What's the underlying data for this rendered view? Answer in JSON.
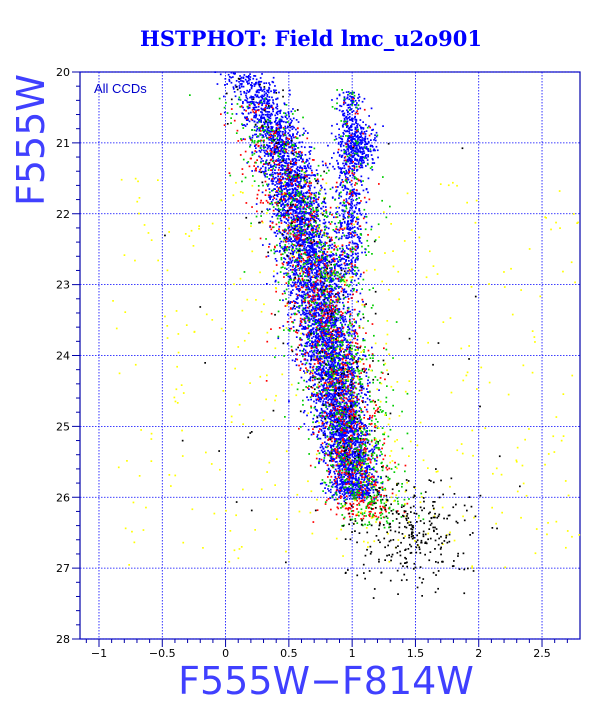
{
  "chart_data": {
    "type": "scatter",
    "title": "HSTPHOT: Field lmc_u2o901",
    "xlabel": "F555W−F814W",
    "ylabel": "F555W",
    "xlim": [
      -1.15,
      2.8
    ],
    "ylim": [
      28,
      20
    ],
    "x_ticks": [
      "−1",
      "−0.5",
      "0",
      "0.5",
      "1",
      "1.5",
      "2",
      "2.5"
    ],
    "x_tick_values": [
      -1,
      -0.5,
      0,
      0.5,
      1,
      1.5,
      2,
      2.5
    ],
    "y_ticks": [
      "20",
      "21",
      "22",
      "23",
      "24",
      "25",
      "26",
      "27",
      "28"
    ],
    "y_tick_values": [
      20,
      21,
      22,
      23,
      24,
      25,
      26,
      27,
      28
    ],
    "y_inverted": true,
    "grid": true,
    "annotation": "All CCDs",
    "series": [
      {
        "color": "#0000ff",
        "components": [
          {
            "kind": "sequence",
            "x0": 0.06,
            "y0": 20.0,
            "x1": 1.02,
            "y1": 26.0,
            "curve": 0.55,
            "spread": 0.1,
            "count": 5500
          },
          {
            "kind": "branch",
            "x0": 0.98,
            "y0": 20.3,
            "x1": 0.98,
            "y1": 22.9,
            "curve": 0.0,
            "spread": 0.05,
            "count": 600
          },
          {
            "kind": "clump",
            "x": 1.05,
            "y": 21.05,
            "sx": 0.07,
            "sy": 0.16,
            "count": 250
          }
        ]
      },
      {
        "color": "#ff0000",
        "components": [
          {
            "kind": "sequence",
            "x0": 0.04,
            "y0": 20.4,
            "x1": 1.1,
            "y1": 26.3,
            "curve": 0.55,
            "spread": 0.14,
            "count": 1100
          },
          {
            "kind": "branch",
            "x0": 0.98,
            "y0": 20.4,
            "x1": 1.0,
            "y1": 22.9,
            "curve": 0.0,
            "spread": 0.07,
            "count": 80
          }
        ]
      },
      {
        "color": "#00cc00",
        "components": [
          {
            "kind": "sequence",
            "x0": 0.04,
            "y0": 20.3,
            "x1": 1.15,
            "y1": 26.4,
            "curve": 0.55,
            "spread": 0.15,
            "count": 1100
          },
          {
            "kind": "branch",
            "x0": 0.98,
            "y0": 20.2,
            "x1": 1.02,
            "y1": 23.2,
            "curve": 0.0,
            "spread": 0.09,
            "count": 120
          }
        ]
      },
      {
        "color": "#ffff00",
        "components": [
          {
            "kind": "field",
            "x_range": [
              -0.9,
              2.8
            ],
            "y_range": [
              21.5,
              27.0
            ],
            "count": 300
          },
          {
            "kind": "sequence",
            "x0": 0.1,
            "y0": 21.5,
            "x1": 1.4,
            "y1": 26.8,
            "curve": 0.5,
            "spread": 0.25,
            "count": 150
          }
        ]
      },
      {
        "color": "#000000",
        "components": [
          {
            "kind": "sequence",
            "x0": 0.05,
            "y0": 20.1,
            "x1": 1.0,
            "y1": 25.5,
            "curve": 0.55,
            "spread": 0.14,
            "count": 200
          },
          {
            "kind": "clump",
            "x": 1.45,
            "y": 26.5,
            "sx": 0.25,
            "sy": 0.35,
            "count": 300
          },
          {
            "kind": "field",
            "x_range": [
              -0.5,
              2.5
            ],
            "y_range": [
              21.0,
              27.0
            ],
            "count": 40
          }
        ]
      }
    ]
  }
}
